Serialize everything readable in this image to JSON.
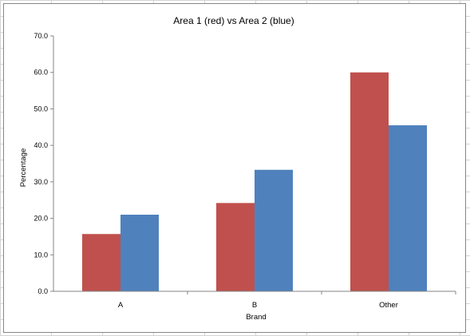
{
  "chart_data": {
    "type": "bar",
    "title": "Area 1 (red) vs Area 2 (blue)",
    "xlabel": "Brand",
    "ylabel": "Percentage",
    "categories": [
      "A",
      "B",
      "Other"
    ],
    "series": [
      {
        "color": "#c0504d",
        "values": [
          15.7,
          24.2,
          60.0
        ]
      },
      {
        "color": "#4f81bd",
        "values": [
          21.0,
          33.3,
          45.5
        ]
      }
    ],
    "ylim": [
      0,
      70
    ],
    "yticks": [
      "0.0",
      "10.0",
      "20.0",
      "30.0",
      "40.0",
      "50.0",
      "60.0",
      "70.0"
    ],
    "grid": false,
    "legend": "none"
  }
}
